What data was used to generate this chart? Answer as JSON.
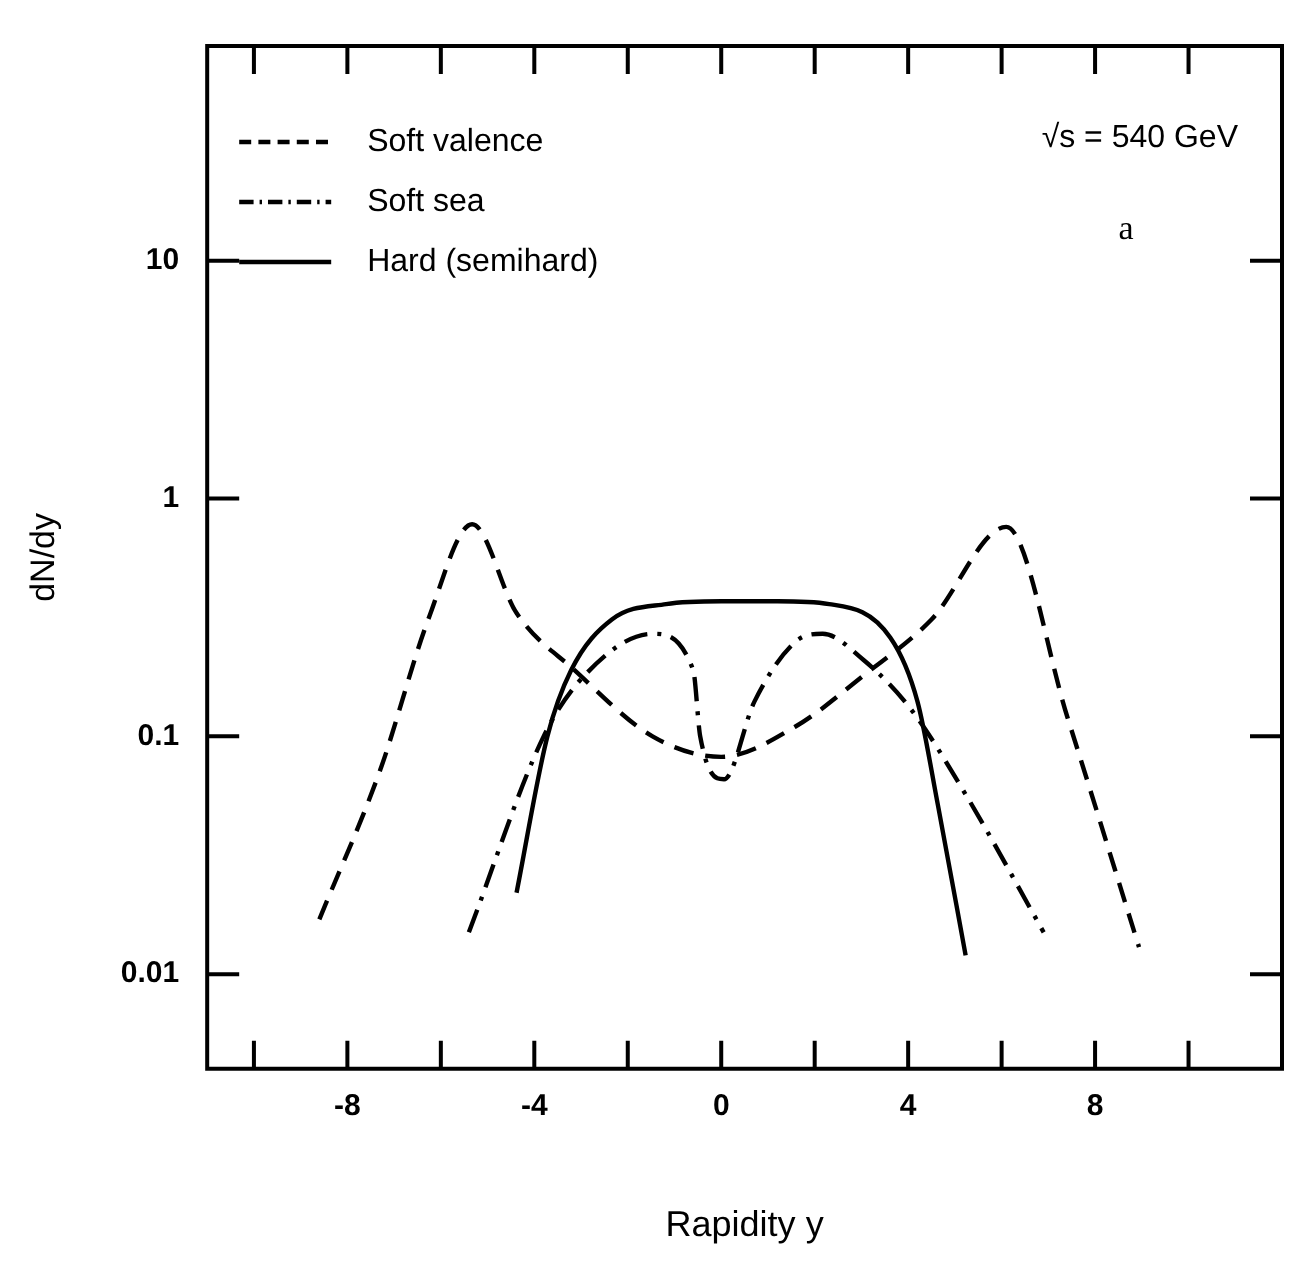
{
  "chart_data": {
    "type": "line",
    "xlabel": "Rapidity y",
    "ylabel": "dN/dy",
    "log": "y",
    "grid": false,
    "legend": "top left",
    "marker": "none",
    "xlim": [
      -11,
      12
    ],
    "xticks": [
      {
        "value": -10,
        "label": null
      },
      -8,
      {
        "value": -6,
        "label": null
      },
      -4,
      {
        "value": -2,
        "label": null
      },
      0,
      {
        "value": 2,
        "label": null
      },
      4,
      {
        "value": 6,
        "label": null
      },
      8,
      {
        "value": 10,
        "label": null
      }
    ],
    "ylim": [
      0.004,
      80
    ],
    "yticks": [
      0.01,
      0.1,
      1,
      10
    ],
    "annotations": [
      "√s = 540 GeV",
      "a"
    ],
    "series": [
      {
        "name": "Soft valence",
        "color": "#000000",
        "line_style": "dashed",
        "x": [
          -8.6,
          -7.3,
          -6.27,
          -5.33,
          -4.38,
          -3.14,
          -1.47,
          0,
          1.59,
          3.04,
          4.5,
          6.1,
          7.41,
          8.94
        ],
        "values": [
          0.017,
          0.072,
          0.31,
          0.78,
          0.33,
          0.19,
          0.1,
          0.082,
          0.11,
          0.18,
          0.31,
          0.76,
          0.12,
          0.013
        ]
      },
      {
        "name": "Soft sea",
        "color": "#000000",
        "line_style": "dashdot",
        "x": [
          -5.4,
          -3.8,
          -2.93,
          -1.47,
          -0.6,
          -0.45,
          0.06,
          0.71,
          1.59,
          2.17,
          3.04,
          4.06,
          5.23,
          6.9
        ],
        "values": [
          0.015,
          0.1,
          0.18,
          0.27,
          0.19,
          0.1,
          0.066,
          0.14,
          0.25,
          0.27,
          0.21,
          0.13,
          0.057,
          0.015
        ]
      },
      {
        "name": "Hard (semihard)",
        "color": "#000000",
        "line_style": "solid",
        "x": [
          -4.38,
          -3.72,
          -3.21,
          -2.34,
          -1.18,
          0,
          1.2,
          2.31,
          3.62,
          4.2,
          4.64,
          5.23
        ],
        "values": [
          0.022,
          0.1,
          0.19,
          0.31,
          0.36,
          0.37,
          0.37,
          0.36,
          0.26,
          0.14,
          0.051,
          0.012
        ]
      }
    ]
  }
}
